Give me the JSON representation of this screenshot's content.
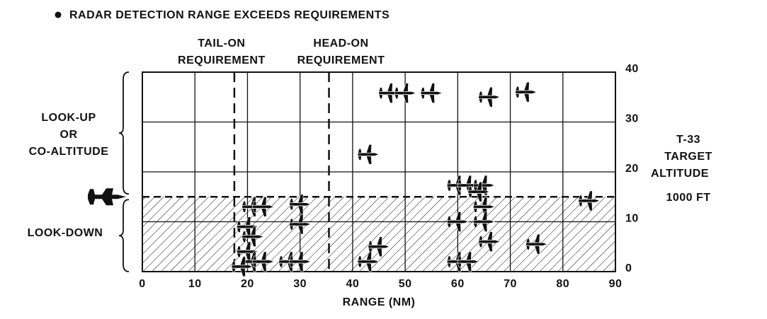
{
  "chart_data": {
    "type": "scatter",
    "title": "RADAR DETECTION RANGE EXCEEDS REQUIREMENTS",
    "x_label": "RANGE (NM)",
    "y_label": [
      "T-33",
      "TARGET",
      "ALTITUDE",
      "1000 FT"
    ],
    "regions": [
      {
        "label": [
          "LOOK-UP",
          "OR",
          "CO-ALTITUDE"
        ]
      },
      {
        "label": [
          "LOOK-DOWN"
        ]
      }
    ],
    "requirements": [
      {
        "label": [
          "TAIL-ON",
          "REQUIREMENT"
        ],
        "value": 17.5
      },
      {
        "label": [
          "HEAD-ON",
          "REQUIREMENT"
        ],
        "value": 35.5
      }
    ],
    "own_altitude": 15,
    "x": [
      47,
      50,
      55,
      66,
      73,
      43,
      60,
      62,
      65,
      64,
      85,
      21,
      23,
      30,
      30,
      20,
      21,
      20,
      21,
      23,
      28,
      30,
      19,
      43,
      45,
      60,
      65,
      65,
      66,
      75,
      60,
      62
    ],
    "y": [
      35.8,
      35.8,
      35.8,
      35,
      36,
      23.5,
      17.3,
      17.3,
      17.3,
      16,
      14.2,
      13,
      13,
      13.5,
      9.5,
      9,
      7,
      4,
      2,
      2,
      2,
      2,
      1,
      2,
      5,
      10,
      13,
      10,
      6,
      5.5,
      2,
      2
    ],
    "xlim": [
      0,
      90
    ],
    "ylim": [
      0,
      40
    ],
    "xticks": [
      0,
      10,
      20,
      30,
      40,
      50,
      60,
      70,
      80,
      90
    ],
    "yticks": [
      0,
      10,
      20,
      30,
      40
    ],
    "grid": true,
    "color": "#111111"
  }
}
